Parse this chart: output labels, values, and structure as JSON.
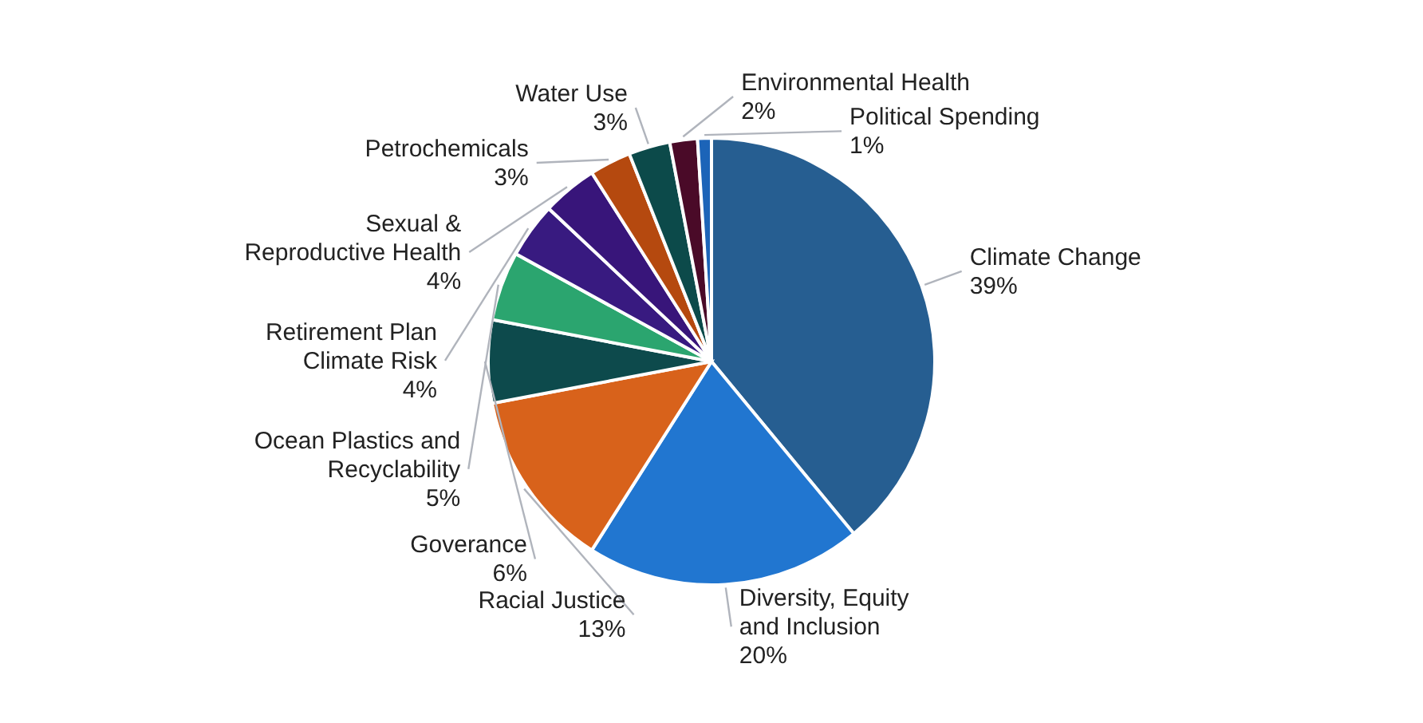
{
  "chart_data": {
    "type": "pie",
    "categories": [
      "Climate Change",
      "Diversity, Equity and Inclusion",
      "Racial Justice",
      "Goverance",
      "Ocean Plastics and Recyclability",
      "Retirement Plan Climate Risk",
      "Sexual & Reproductive Health",
      "Petrochemicals",
      "Water Use",
      "Environmental Health",
      "Political Spending"
    ],
    "values": [
      39,
      20,
      13,
      6,
      5,
      4,
      4,
      3,
      3,
      2,
      1
    ],
    "value_labels": [
      "39%",
      "20%",
      "13%",
      "6%",
      "5%",
      "4%",
      "4%",
      "3%",
      "3%",
      "2%",
      "1%"
    ],
    "colors": [
      "#265e91",
      "#2176d0",
      "#d8621b",
      "#0d4a4c",
      "#2ba56f",
      "#381a80",
      "#38157a",
      "#b5490f",
      "#0c4a4a",
      "#4a0a28",
      "#1c64b8"
    ]
  }
}
